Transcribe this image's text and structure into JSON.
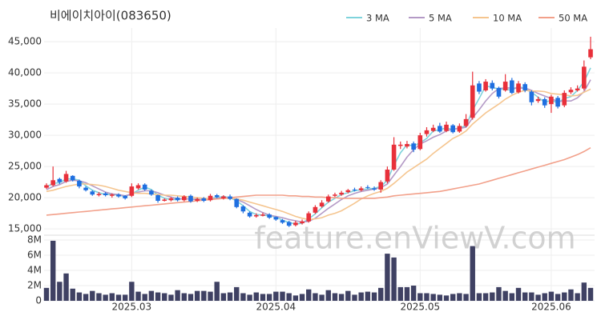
{
  "chart_data": {
    "type": "candlestick",
    "title": "비에이치아이(083650)",
    "watermark": "feature.enViewV.com",
    "up_color": "#e8303a",
    "down_color": "#1f6fe0",
    "grid": true,
    "categories": [
      null,
      null,
      null,
      null,
      null,
      null,
      null,
      null,
      null,
      null,
      null,
      null,
      null,
      "2025.03",
      null,
      null,
      null,
      null,
      null,
      null,
      null,
      null,
      null,
      null,
      null,
      null,
      null,
      null,
      null,
      null,
      null,
      null,
      null,
      null,
      null,
      "2025.04",
      null,
      null,
      null,
      null,
      null,
      null,
      null,
      null,
      null,
      null,
      null,
      null,
      null,
      null,
      null,
      null,
      null,
      null,
      null,
      null,
      null,
      "2025.05",
      null,
      null,
      null,
      null,
      null,
      null,
      null,
      null,
      null,
      null,
      null,
      null,
      null,
      null,
      null,
      null,
      null,
      null,
      null,
      "2025.06",
      null,
      null,
      null,
      null,
      null,
      null
    ],
    "open": [
      21600,
      22000,
      23000,
      22600,
      23500,
      22700,
      21600,
      21000,
      20400,
      20700,
      20300,
      20500,
      20300,
      20300,
      21500,
      22100,
      21100,
      20400,
      19500,
      19600,
      20000,
      19600,
      20300,
      19500,
      19900,
      19600,
      20400,
      19900,
      20200,
      19800,
      18600,
      17600,
      17000,
      17100,
      17300,
      16900,
      16400,
      16100,
      15600,
      15900,
      16200,
      17600,
      18600,
      19400,
      20300,
      20500,
      20900,
      21300,
      21200,
      21700,
      21500,
      21300,
      22600,
      24500,
      28300,
      28200,
      28700,
      27800,
      30200,
      30700,
      31500,
      30700,
      31600,
      30600,
      31500,
      32800,
      38300,
      37200,
      38400,
      37600,
      37200,
      38800,
      36900,
      38200,
      37000,
      35500,
      35800,
      35000,
      36000,
      34800,
      36900,
      37200,
      37500,
      42500
    ],
    "high": [
      22300,
      25000,
      23200,
      24300,
      23600,
      22900,
      21800,
      21200,
      20900,
      20900,
      20700,
      20700,
      20400,
      22300,
      22300,
      22300,
      21300,
      20500,
      19900,
      20100,
      20200,
      20400,
      20500,
      20000,
      20100,
      20600,
      20600,
      20400,
      20500,
      19900,
      18800,
      17800,
      17500,
      17600,
      17500,
      17000,
      16600,
      16300,
      16300,
      16500,
      17800,
      18800,
      19600,
      20500,
      20800,
      21100,
      21400,
      21600,
      21800,
      22000,
      21800,
      22800,
      25000,
      29700,
      29000,
      29100,
      29000,
      30400,
      31300,
      31700,
      32000,
      32200,
      31800,
      31900,
      33400,
      40200,
      38700,
      39000,
      38800,
      37800,
      39800,
      39200,
      38700,
      38500,
      37200,
      36200,
      36100,
      36500,
      36300,
      37200,
      37700,
      38000,
      42000,
      45800
    ],
    "low": [
      21400,
      21800,
      22200,
      22400,
      22600,
      21500,
      21000,
      20300,
      20200,
      20200,
      20000,
      20000,
      19700,
      20100,
      21300,
      21100,
      20300,
      19200,
      19400,
      19400,
      19400,
      19400,
      19200,
      19300,
      19300,
      19400,
      19900,
      19700,
      19600,
      18300,
      17500,
      16800,
      16800,
      17000,
      16600,
      16300,
      15800,
      15300,
      15400,
      15700,
      16000,
      17400,
      18400,
      19200,
      20100,
      20300,
      20700,
      21000,
      21000,
      21400,
      21100,
      20800,
      22300,
      24300,
      27800,
      27900,
      27300,
      27600,
      29800,
      30500,
      30400,
      30500,
      30300,
      30400,
      31300,
      32500,
      36600,
      37000,
      37200,
      35900,
      37000,
      36600,
      36700,
      36900,
      34800,
      35200,
      34400,
      33600,
      34300,
      34500,
      36600,
      37000,
      37200,
      42200
    ],
    "close": [
      22000,
      22800,
      22500,
      23800,
      22800,
      21800,
      21200,
      20500,
      20600,
      20400,
      20500,
      20200,
      19900,
      21800,
      22000,
      21300,
      20500,
      19500,
      19700,
      19900,
      19600,
      20200,
      19400,
      19800,
      19500,
      20300,
      20100,
      20200,
      19800,
      18500,
      17800,
      17000,
      17200,
      17300,
      16800,
      16500,
      16000,
      15500,
      16000,
      16200,
      17500,
      18500,
      19200,
      20200,
      20500,
      20800,
      21200,
      21200,
      21500,
      21600,
      21300,
      22500,
      24500,
      28500,
      28500,
      28600,
      27700,
      30000,
      30800,
      31200,
      30600,
      31700,
      30500,
      31500,
      32600,
      38000,
      37000,
      38600,
      37500,
      36200,
      38600,
      36800,
      38300,
      37200,
      35300,
      35800,
      34800,
      36200,
      34600,
      36800,
      37300,
      37500,
      41000,
      43800
    ],
    "ylim": [
      14500,
      47200
    ],
    "yticks": [
      {
        "value": 15000,
        "label": "15,000"
      },
      {
        "value": 20000,
        "label": "20,000"
      },
      {
        "value": 25000,
        "label": "25,000"
      },
      {
        "value": 30000,
        "label": "30,000"
      },
      {
        "value": 35000,
        "label": "35,000"
      },
      {
        "value": 40000,
        "label": "40,000"
      },
      {
        "value": 45000,
        "label": "45,000"
      }
    ],
    "moving_averages": [
      {
        "name": "3 MA",
        "color": "#7fd3dc",
        "values": [
          21700,
          22300,
          22400,
          23000,
          23000,
          22800,
          21900,
          21200,
          20800,
          20500,
          20500,
          20400,
          20200,
          20600,
          21200,
          21700,
          21300,
          20400,
          19900,
          19700,
          19700,
          19900,
          19700,
          19800,
          19600,
          19900,
          20000,
          20200,
          20000,
          19500,
          18700,
          17800,
          17300,
          17200,
          17100,
          16900,
          16400,
          16000,
          15800,
          15900,
          16600,
          17400,
          18400,
          19300,
          19900,
          20500,
          20800,
          21100,
          21300,
          21400,
          21500,
          21800,
          22800,
          25200,
          27200,
          28500,
          28300,
          28800,
          29500,
          30700,
          30900,
          31200,
          30900,
          31200,
          31500,
          34000,
          35900,
          37900,
          37700,
          37400,
          37400,
          37200,
          37900,
          37400,
          36900,
          36100,
          35300,
          35600,
          35200,
          35900,
          36200,
          37200,
          38600,
          40800
        ]
      },
      {
        "name": "5 MA",
        "color": "#b49ac6",
        "values": [
          21300,
          21800,
          22100,
          22600,
          22800,
          22700,
          22400,
          21900,
          21400,
          20900,
          20600,
          20500,
          20300,
          20600,
          20900,
          21100,
          21100,
          20800,
          20400,
          20100,
          19800,
          19800,
          19800,
          19700,
          19700,
          19800,
          19900,
          20000,
          20000,
          19700,
          19300,
          18700,
          18100,
          17600,
          17200,
          17000,
          16800,
          16500,
          16300,
          16100,
          16200,
          16700,
          17500,
          18300,
          19000,
          19700,
          20300,
          20700,
          21000,
          21200,
          21400,
          21600,
          22200,
          23600,
          25000,
          26500,
          27700,
          28600,
          29100,
          29700,
          30100,
          30700,
          31000,
          31100,
          31300,
          32800,
          34100,
          35500,
          36700,
          37500,
          37600,
          37600,
          37500,
          37600,
          37200,
          36700,
          36300,
          35900,
          35400,
          35500,
          35500,
          36000,
          37000,
          38900
        ]
      },
      {
        "name": "10 MA",
        "color": "#f5c58f",
        "values": [
          21000,
          21200,
          21500,
          21800,
          22000,
          22200,
          22200,
          22100,
          22000,
          21800,
          21500,
          21200,
          21000,
          20800,
          20700,
          20700,
          20600,
          20500,
          20400,
          20400,
          20300,
          20200,
          20100,
          20000,
          19900,
          19800,
          19800,
          19900,
          19900,
          19800,
          19600,
          19300,
          19000,
          18700,
          18400,
          18100,
          17800,
          17400,
          17000,
          16700,
          16500,
          16600,
          16800,
          17200,
          17500,
          17900,
          18500,
          19100,
          19800,
          20300,
          20700,
          21000,
          21500,
          22300,
          23200,
          24100,
          24800,
          25500,
          26200,
          27100,
          27900,
          28700,
          29500,
          30000,
          30700,
          31800,
          32700,
          33600,
          34300,
          35000,
          35800,
          36400,
          36900,
          37200,
          37100,
          37100,
          37000,
          36700,
          36600,
          36500,
          36300,
          36400,
          36900,
          37400
        ]
      },
      {
        "name": "50 MA",
        "color": "#f2a08a",
        "values": [
          17200,
          17300,
          17400,
          17500,
          17600,
          17700,
          17800,
          17900,
          18000,
          18100,
          18200,
          18300,
          18400,
          18500,
          18600,
          18700,
          18800,
          18900,
          19000,
          19100,
          19200,
          19300,
          19400,
          19500,
          19600,
          19700,
          19800,
          19900,
          20000,
          20100,
          20200,
          20300,
          20400,
          20400,
          20400,
          20400,
          20400,
          20300,
          20300,
          20200,
          20200,
          20100,
          20100,
          20000,
          20000,
          19900,
          19900,
          19900,
          19900,
          19900,
          19900,
          20000,
          20100,
          20300,
          20400,
          20500,
          20600,
          20700,
          20800,
          20900,
          21000,
          21200,
          21400,
          21600,
          21800,
          22000,
          22200,
          22500,
          22800,
          23100,
          23400,
          23700,
          24000,
          24300,
          24600,
          24900,
          25200,
          25500,
          25800,
          26100,
          26500,
          26900,
          27400,
          28000
        ]
      }
    ],
    "volume": {
      "color": "#3f4163",
      "ylim": [
        0,
        8000000
      ],
      "yticks": [
        0,
        {
          "value": 2000000,
          "label": "2M"
        },
        {
          "value": 4000000,
          "label": "4M"
        },
        {
          "value": 6000000,
          "label": "6M"
        },
        {
          "value": 8000000,
          "label": "8M"
        }
      ],
      "values": [
        1700000,
        7900000,
        2500000,
        3600000,
        1600000,
        1100000,
        900000,
        1300000,
        1000000,
        800000,
        1000000,
        800000,
        800000,
        2500000,
        1200000,
        900000,
        1300000,
        1100000,
        1000000,
        800000,
        1400000,
        1000000,
        900000,
        1300000,
        1300000,
        1200000,
        2500000,
        1000000,
        1100000,
        1800000,
        1000000,
        800000,
        1100000,
        900000,
        900000,
        1200000,
        1200000,
        1000000,
        700000,
        900000,
        1500000,
        1000000,
        800000,
        1400000,
        1000000,
        900000,
        1300000,
        800000,
        1100000,
        1200000,
        1100000,
        1700000,
        6200000,
        5700000,
        1800000,
        1800000,
        2000000,
        1000000,
        1000000,
        900000,
        800000,
        700000,
        900000,
        1000000,
        900000,
        7200000,
        1000000,
        1000000,
        1100000,
        1800000,
        1300000,
        1000000,
        1700000,
        1100000,
        1100000,
        800000,
        1000000,
        1200000,
        900000,
        1100000,
        1500000,
        1000000,
        2400000,
        1700000
      ]
    }
  }
}
